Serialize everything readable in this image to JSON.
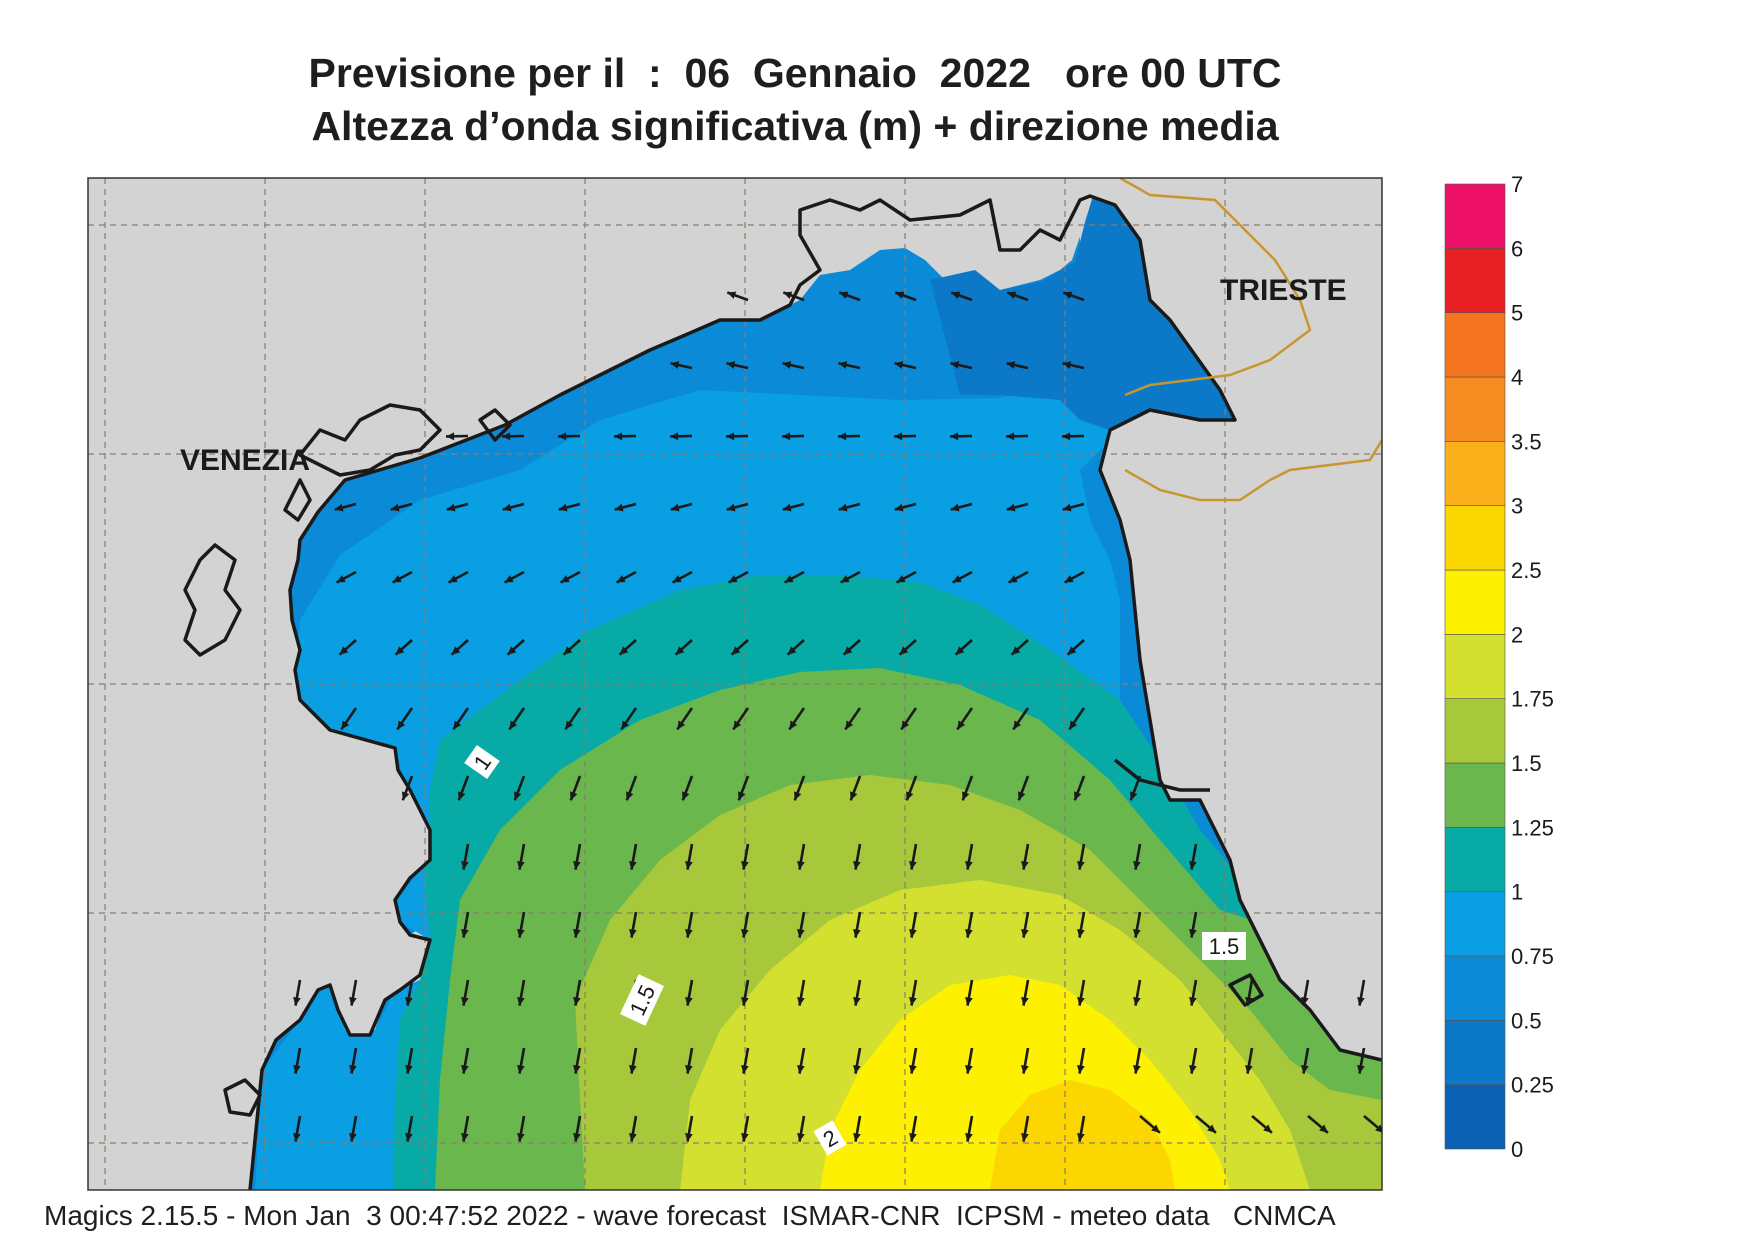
{
  "title_line1": "Previsione per il  :  06  Gennaio  2022   ore 00 UTC",
  "title_line2": "Altezza d’onda significativa (m) + direzione media",
  "cities": [
    {
      "name": "VENEZIA"
    },
    {
      "name": "TRIESTE"
    }
  ],
  "contour_labels": [
    "1",
    "1.5",
    "1.5",
    "2"
  ],
  "legend": {
    "levels": [
      "0",
      "0.25",
      "0.5",
      "0.75",
      "1",
      "1.25",
      "1.5",
      "1.75",
      "2",
      "2.5",
      "3",
      "3.5",
      "4",
      "5",
      "6",
      "7"
    ],
    "colors": [
      "#0b62b4",
      "#0b78c8",
      "#0b8ad8",
      "#0a9fe2",
      "#08aaa6",
      "#6ab74e",
      "#a6c83a",
      "#d3e030",
      "#fdf000",
      "#fbd600",
      "#f9b01a",
      "#f58c22",
      "#f3731f",
      "#e81f25",
      "#ec1166"
    ]
  },
  "colors": {
    "land": "#d3d3d3",
    "coast": "#1a1a1a",
    "border": "#c8962e",
    "grid": "#8c7c6c",
    "arrow": "#1a1a1a"
  },
  "footer": "Magics 2.15.5 - Mon Jan  3 00:47:52 2022 - wave forecast  ISMAR-CNR  ICPSM - meteo data   CNMCA"
}
